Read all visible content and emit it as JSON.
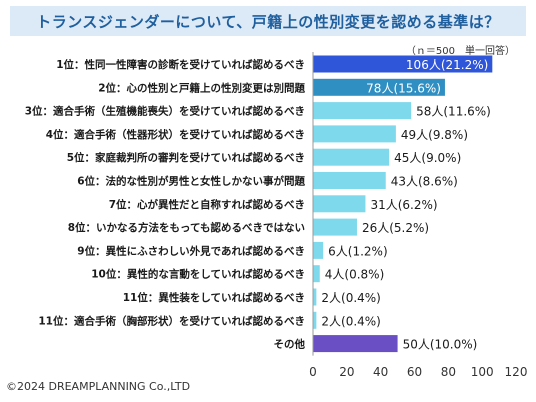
{
  "chart_data": {
    "type": "bar",
    "orientation": "horizontal",
    "title": "トランスジェンダーについて、戸籍上の性別変更を認める基準は？",
    "note": "（ｎ＝500　単一回答）",
    "xlim": [
      0,
      120
    ],
    "xticks": [
      "0",
      "20",
      "40",
      "60",
      "80",
      "100",
      "120"
    ],
    "grid": false,
    "categories": [
      "1位：性同一性障害の診断を受けていれば認めるべき",
      "2位：心の性別と戸籍上の性別変更は別問題",
      "3位：適合手術（生殖機能喪失）を受けていれば認めるべき",
      "4位：適合手術（性器形状）を受けていれば認めるべき",
      "5位：家庭裁判所の審判を受けていれば認めるべき",
      "6位：法的な性別が男性と女性しかない事が問題",
      "7位：心が異性だと自称すれば認めるべき",
      "8位：いかなる方法をもっても認めるべきではない",
      "9位：異性にふさわしい外見であれば認めるべき",
      "10位：異性的な言動をしていれば認めるべき",
      "11位：異性装をしていれば認めるべき",
      "11位：適合手術（胸部形状）を受けていれば認めるべき",
      "その他"
    ],
    "values": [
      106,
      78,
      58,
      49,
      45,
      43,
      31,
      26,
      6,
      4,
      2,
      2,
      50
    ],
    "value_labels": [
      "106人(21.2%)",
      "78人(15.6%)",
      "58人(11.6%)",
      "49人(9.8%)",
      "45人(9.0%)",
      "43人(8.6%)",
      "31人(6.2%)",
      "26人(5.2%)",
      "6人(1.2%)",
      "4人(0.8%)",
      "2人(0.4%)",
      "2人(0.4%)",
      "50人(10.0%)"
    ],
    "colors": [
      "#2f55d9",
      "#2f8fc2",
      "#7fd9ec",
      "#7fd9ec",
      "#7fd9ec",
      "#7fd9ec",
      "#7fd9ec",
      "#7fd9ec",
      "#7fd9ec",
      "#7fd9ec",
      "#7fd9ec",
      "#7fd9ec",
      "#6a4fc4"
    ],
    "label_inside": [
      true,
      true,
      false,
      false,
      false,
      false,
      false,
      false,
      false,
      false,
      false,
      false,
      false
    ]
  },
  "copyright": "©2024 DREAMPLANNING Co.,LTD"
}
